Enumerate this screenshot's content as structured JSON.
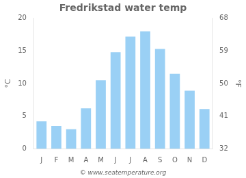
{
  "chart_data": {
    "type": "bar",
    "title": "Fredrikstad water temp",
    "categories": [
      "J",
      "F",
      "M",
      "A",
      "M",
      "J",
      "J",
      "A",
      "S",
      "O",
      "N",
      "D"
    ],
    "values": [
      4.2,
      3.5,
      3.0,
      6.2,
      10.5,
      14.8,
      17.2,
      18.0,
      15.3,
      11.5,
      8.9,
      6.1
    ],
    "ylim": [
      0,
      20
    ],
    "yticks": [
      0,
      5,
      10,
      15,
      20
    ],
    "y2lim": [
      32,
      68
    ],
    "y2ticks": [
      32,
      41,
      50,
      59,
      68
    ],
    "ylabel": "°C",
    "y2label": "°F",
    "annotations": [
      "© www.seatemperature.org"
    ],
    "grid": false
  }
}
